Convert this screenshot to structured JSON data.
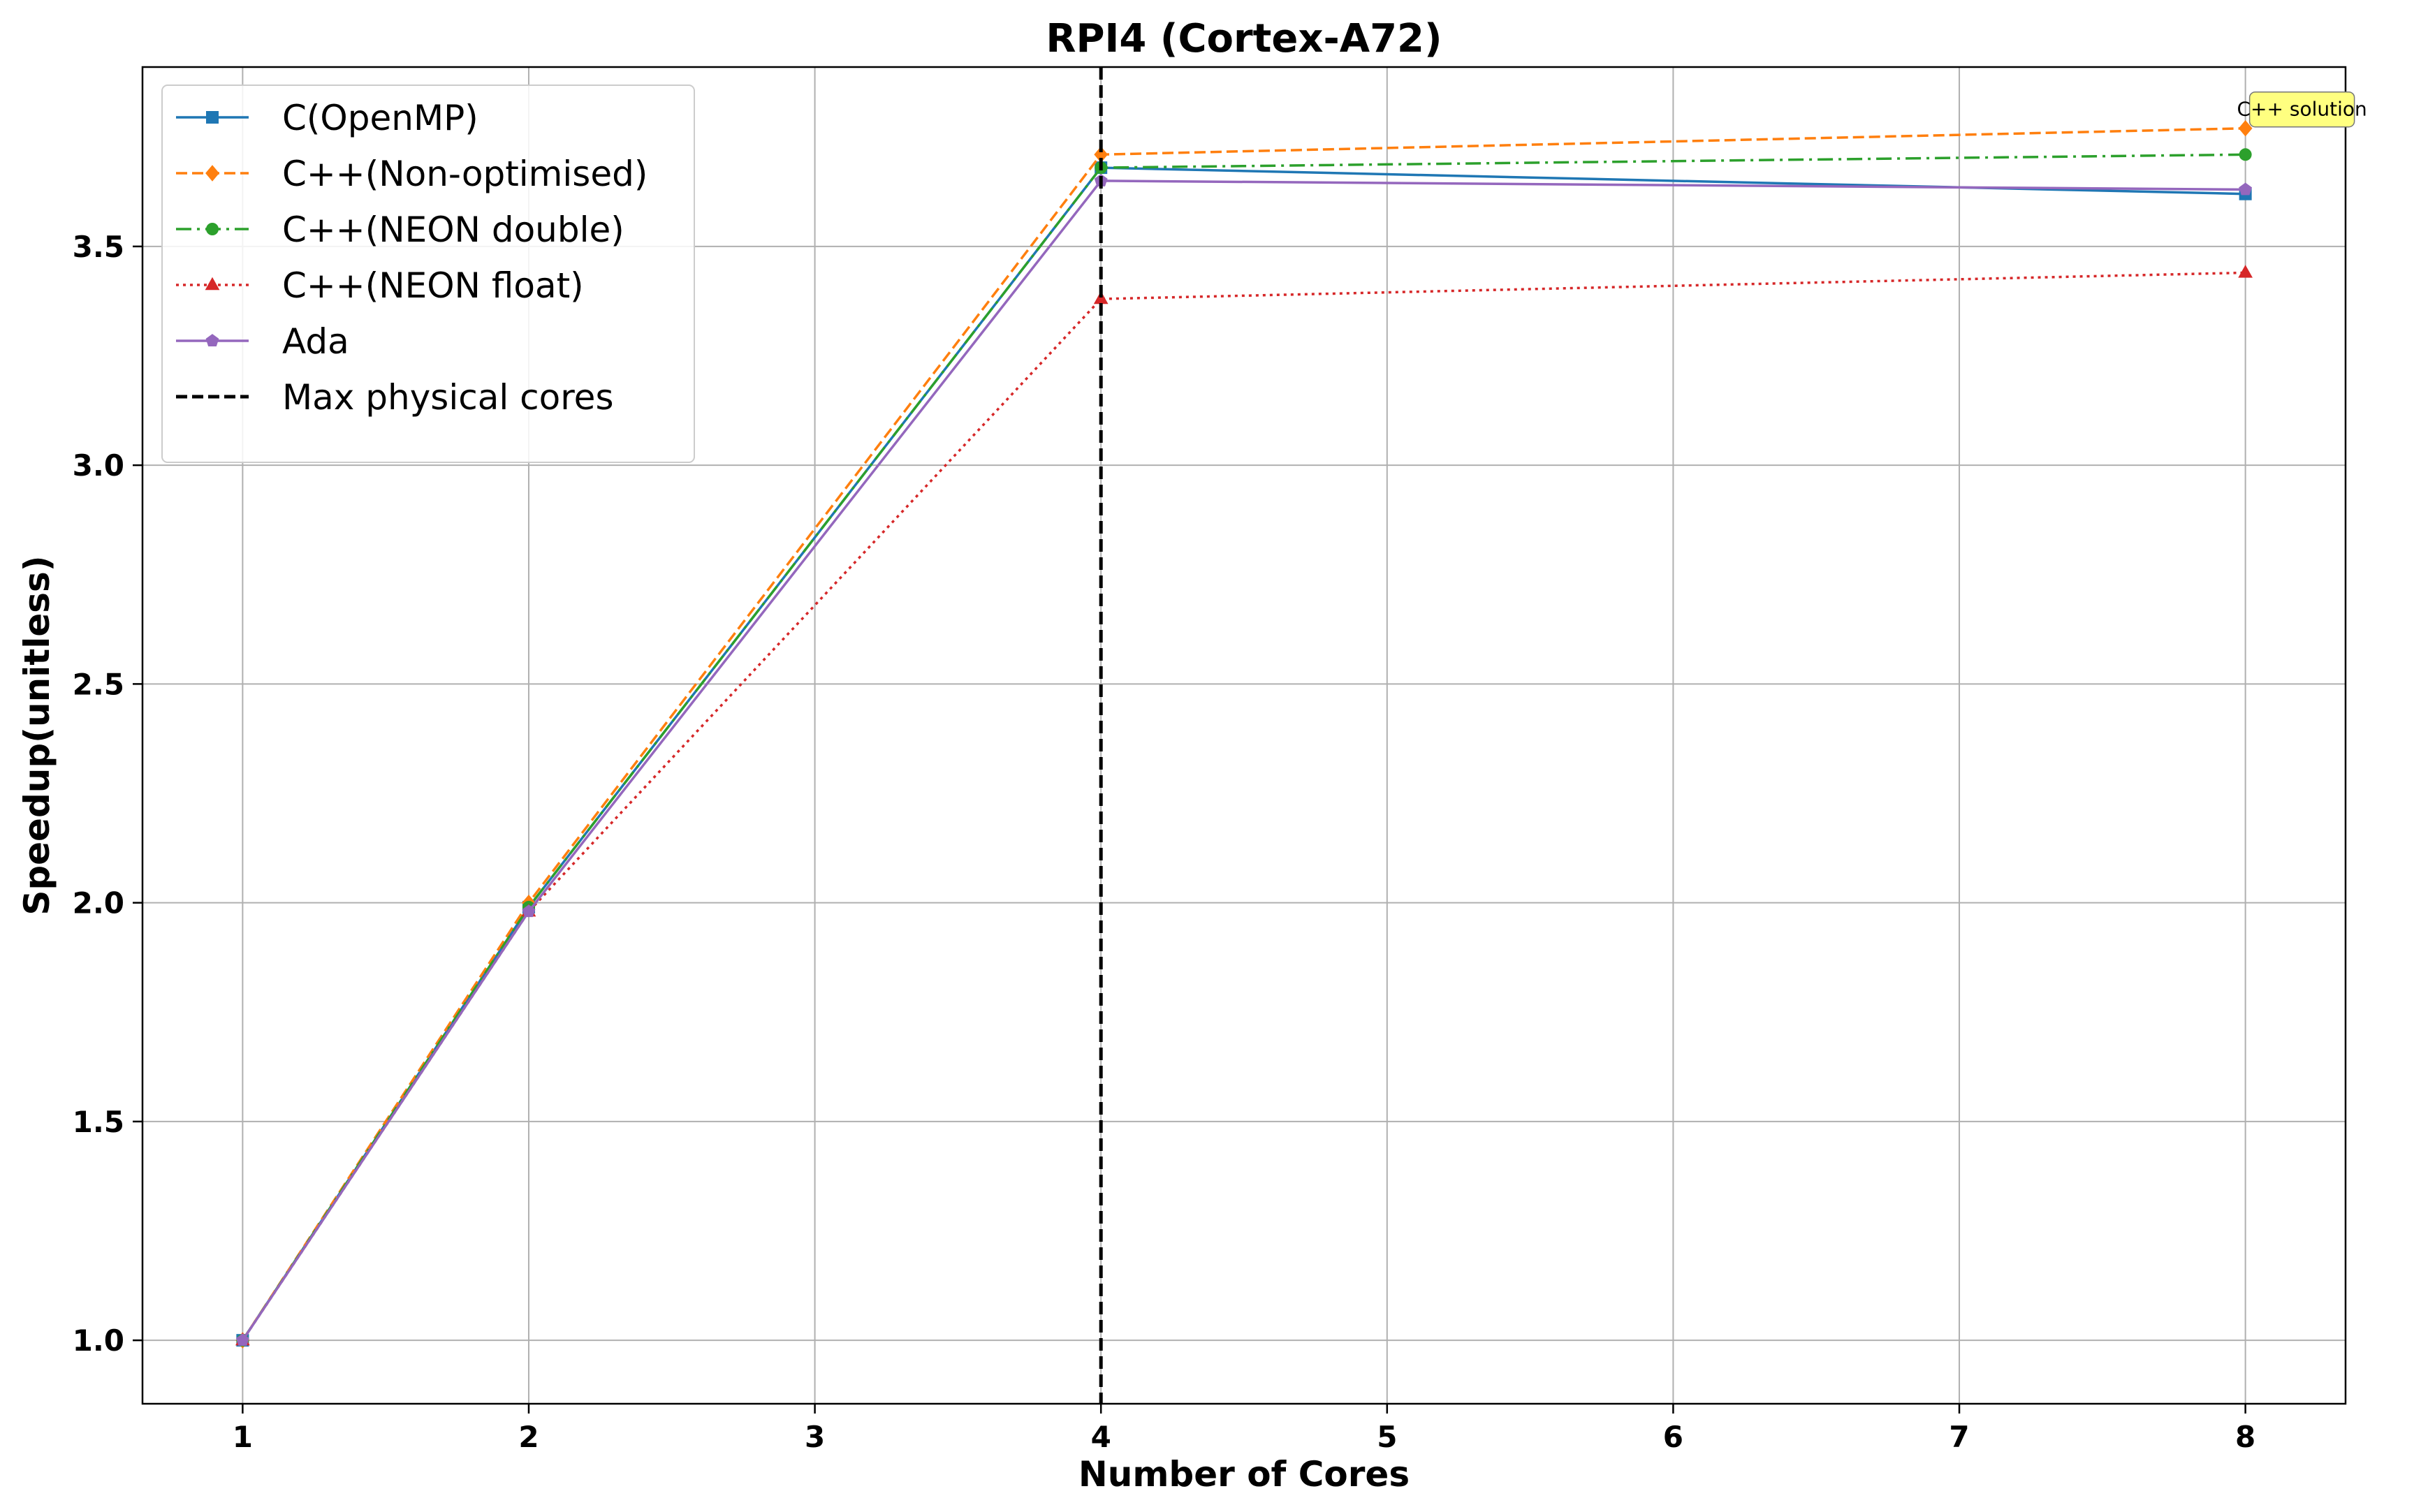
{
  "chart_data": {
    "type": "line",
    "title": "RPI4 (Cortex-A72)",
    "xlabel": "Number of Cores",
    "ylabel": "Speedup(unitless)",
    "x": [
      1,
      2,
      4,
      8
    ],
    "xlim": [
      0.65,
      8.35
    ],
    "ylim": [
      0.855,
      3.91
    ],
    "xticks": [
      "1",
      "2",
      "3",
      "4",
      "5",
      "6",
      "7",
      "8"
    ],
    "yticks": [
      "1.0",
      "1.5",
      "2.0",
      "2.5",
      "3.0",
      "3.5"
    ],
    "grid": true,
    "legend_position": "top-left",
    "series": [
      {
        "name": "C(OpenMP)",
        "values": [
          1.0,
          1.99,
          3.68,
          3.62
        ],
        "color": "#1f77b4",
        "dash": "solid",
        "marker": "square"
      },
      {
        "name": "C++(Non-optimised)",
        "values": [
          1.0,
          2.0,
          3.71,
          3.77
        ],
        "color": "#ff7f0e",
        "dash": "dashed",
        "marker": "diamond"
      },
      {
        "name": "C++(NEON double)",
        "values": [
          1.0,
          1.99,
          3.68,
          3.71
        ],
        "color": "#2ca02c",
        "dash": "dashdot",
        "marker": "circle"
      },
      {
        "name": "C++(NEON float)",
        "values": [
          1.0,
          1.98,
          3.38,
          3.44
        ],
        "color": "#d62728",
        "dash": "dotted",
        "marker": "triangle"
      },
      {
        "name": "Ada",
        "values": [
          1.0,
          1.98,
          3.65,
          3.63
        ],
        "color": "#9467bd",
        "dash": "solid",
        "marker": "pentagon"
      }
    ],
    "vline": {
      "x": 4,
      "name": "Max physical cores",
      "color": "#000000"
    },
    "annotations": [
      {
        "text": "C++ solution",
        "x": 8,
        "y": 3.77,
        "background": "#ffff80"
      }
    ]
  }
}
